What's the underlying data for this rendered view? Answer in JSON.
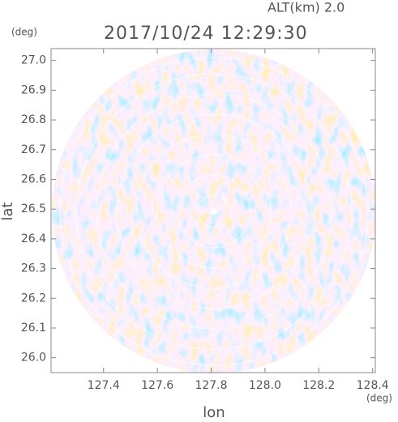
{
  "chart_data": {
    "type": "radar-field",
    "title": "2017/10/24 12:29:30",
    "subtitle": "ALT(km) 2.0",
    "x_label": "lon",
    "y_label": "lat",
    "x_unit": "(deg)",
    "y_unit": "(deg)",
    "xlim": [
      127.205,
      128.41
    ],
    "ylim": [
      25.95,
      27.04
    ],
    "xticks": [
      127.4,
      127.6,
      127.8,
      {
        "value": 128,
        "label": "128.0"
      },
      128.2,
      128.4
    ],
    "yticks": [
      {
        "value": 26,
        "label": "26.0"
      },
      26.1,
      26.2,
      26.3,
      26.4,
      26.5,
      26.6,
      26.7,
      26.8,
      26.9,
      {
        "value": 27,
        "label": "27.0"
      }
    ]
  }
}
